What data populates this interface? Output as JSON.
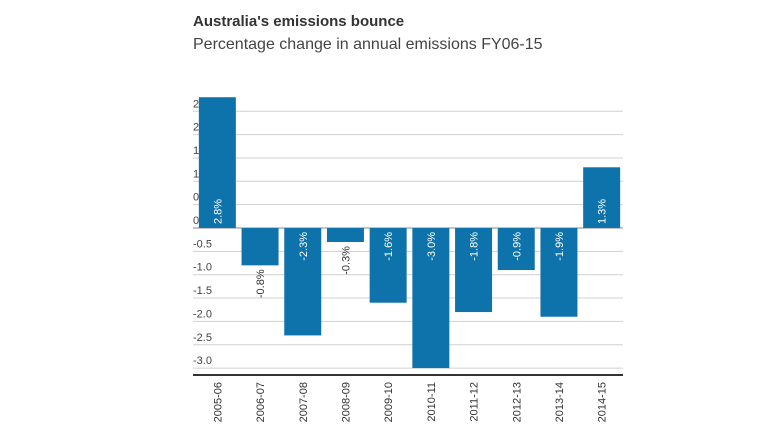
{
  "chart_data": {
    "type": "bar",
    "title": "Australia's emissions bounce",
    "subtitle": "Percentage change in annual emissions FY06-15",
    "xlabel": "",
    "ylabel": "",
    "categories": [
      "2005-06",
      "2006-07",
      "2007-08",
      "2008-09",
      "2009-10",
      "2010-11",
      "2011-12",
      "2012-13",
      "2013-14",
      "2014-15"
    ],
    "values": [
      2.8,
      -0.8,
      -2.3,
      -0.3,
      -1.6,
      -3.0,
      -1.8,
      -0.9,
      -1.9,
      1.3
    ],
    "data_labels": [
      "2.8%",
      "-0.8%",
      "-2.3%",
      "-0.3%",
      "-1.6%",
      "-3.0%",
      "-1.8%",
      "-0.9%",
      "-1.9%",
      "1.3%"
    ],
    "yticks": [
      "2.5",
      "2.0",
      "1.5",
      "1.0",
      "0.5",
      "0.0",
      "-0.5",
      "-1.0",
      "-1.5",
      "-2.0",
      "-2.5",
      "-3.0"
    ],
    "ylim": [
      -3.15,
      2.8
    ],
    "grid": true,
    "legend": "none",
    "colors": {
      "bar": "#0f73ab",
      "grid": "#d0d0d0",
      "axis": "#333333"
    }
  }
}
